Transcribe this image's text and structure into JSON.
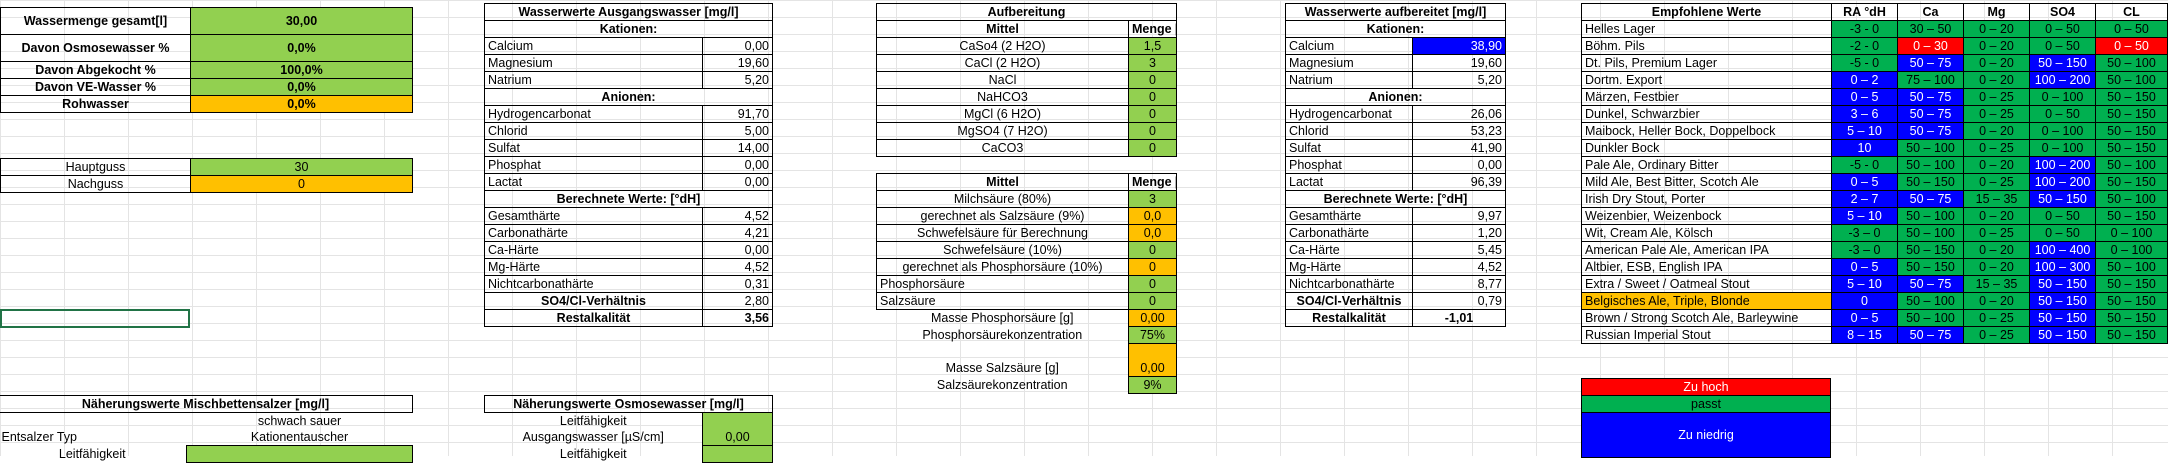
{
  "left": {
    "rows": [
      {
        "label": "Wassermenge gesamt[l]",
        "value": "30,00"
      },
      {
        "label": "Davon Osmosewasser %",
        "value": "0,0%"
      },
      {
        "label": "Davon Abgekocht %",
        "value": "100,0%"
      },
      {
        "label": "Davon VE-Wasser %",
        "value": "0,0%"
      },
      {
        "label": "Rohwasser",
        "value": "0,0%"
      }
    ],
    "hauptguss_label": "Hauptguss",
    "hauptguss_value": "30",
    "nachguss_label": "Nachguss",
    "nachguss_value": "0"
  },
  "ausgang": {
    "title": "Wasserwerte Ausgangswasser [mg/l]",
    "kationen_label": "Kationen:",
    "kationen": [
      {
        "n": "Calcium",
        "v": "0,00"
      },
      {
        "n": "Magnesium",
        "v": "19,60"
      },
      {
        "n": "Natrium",
        "v": "5,20"
      }
    ],
    "anionen_label": "Anionen:",
    "anionen": [
      {
        "n": "Hydrogencarbonat",
        "v": "91,70"
      },
      {
        "n": "Chlorid",
        "v": "5,00"
      },
      {
        "n": "Sulfat",
        "v": "14,00"
      },
      {
        "n": "Phosphat",
        "v": "0,00"
      },
      {
        "n": "Lactat",
        "v": "0,00"
      }
    ],
    "berechnet_label": "Berechnete Werte: [°dH]",
    "berechnet": [
      {
        "n": "Gesamthärte",
        "v": "4,52"
      },
      {
        "n": "Carbonathärte",
        "v": "4,21"
      },
      {
        "n": "Ca-Härte",
        "v": "0,00"
      },
      {
        "n": "Mg-Härte",
        "v": "4,52"
      },
      {
        "n": "Nichtcarbonathärte",
        "v": "0,31"
      }
    ],
    "ratio_label": "SO4/Cl-Verhältnis",
    "ratio": "2,80",
    "rest_label": "Restalkalität",
    "rest": "3,56"
  },
  "aufbereitung": {
    "title": "Aufbereitung",
    "mittel_label": "Mittel",
    "menge_g_label": "Menge [g]",
    "salze": [
      {
        "n": "CaSo4 (2 H2O)",
        "v": "1,5"
      },
      {
        "n": "CaCl (2 H2O)",
        "v": "3"
      },
      {
        "n": "NaCl",
        "v": "0"
      },
      {
        "n": "NaHCO3",
        "v": "0"
      },
      {
        "n": "MgCl (6 H2O)",
        "v": "0"
      },
      {
        "n": "MgSO4 (7 H2O)",
        "v": "0"
      },
      {
        "n": "CaCO3",
        "v": "0"
      }
    ],
    "menge_ml_label": "Menge [ml]",
    "saeuren": [
      {
        "n": "Milchsäure (80%)",
        "v": "3",
        "c": "g"
      },
      {
        "n": "gerechnet als Salzsäure (9%)",
        "v": "0,0",
        "c": "o"
      },
      {
        "n": "Schwefelsäure für Berechnung",
        "v": "0,0",
        "c": "o"
      },
      {
        "n": "Schwefelsäure (10%)",
        "v": "0",
        "c": "g"
      },
      {
        "n": "gerechnet als Phosphorsäure (10%)",
        "v": "0",
        "c": "o"
      },
      {
        "n": "Phosphorsäure",
        "v": "0",
        "c": "g"
      },
      {
        "n": "Salzsäure",
        "v": "0",
        "c": "g"
      }
    ],
    "masse_phosphor_label": "Masse Phosphorsäure [g]",
    "masse_phosphor": "0,00",
    "phosphor_konz_label": "Phosphorsäurekonzentration",
    "phosphor_konz": "75%",
    "masse_salz_label": "Masse Salzsäure [g]",
    "masse_salz": "0,00",
    "salz_konz_label": "Salzsäurekonzentration",
    "salz_konz": "9%"
  },
  "aufbereitet": {
    "title": "Wasserwerte aufbereitet [mg/l]",
    "kationen_label": "Kationen:",
    "kationen": [
      {
        "n": "Calcium",
        "v": "38,90",
        "hl": true
      },
      {
        "n": "Magnesium",
        "v": "19,60"
      },
      {
        "n": "Natrium",
        "v": "5,20"
      }
    ],
    "anionen_label": "Anionen:",
    "anionen": [
      {
        "n": "Hydrogencarbonat",
        "v": "26,06"
      },
      {
        "n": "Chlorid",
        "v": "53,23"
      },
      {
        "n": "Sulfat",
        "v": "41,90"
      },
      {
        "n": "Phosphat",
        "v": "0,00"
      },
      {
        "n": "Lactat",
        "v": "96,39"
      }
    ],
    "berechnet_label": "Berechnete Werte: [°dH]",
    "berechnet": [
      {
        "n": "Gesamthärte",
        "v": "9,97"
      },
      {
        "n": "Carbonathärte",
        "v": "1,20"
      },
      {
        "n": "Ca-Härte",
        "v": "5,45"
      },
      {
        "n": "Mg-Härte",
        "v": "4,52"
      },
      {
        "n": "Nichtcarbonathärte",
        "v": "8,77"
      }
    ],
    "ratio_label": "SO4/Cl-Verhältnis",
    "ratio": "0,79",
    "rest_label": "Restalkalität",
    "rest": "-1,01"
  },
  "empfohlen": {
    "title": "Empfohlene Werte",
    "cols": [
      "RA °dH",
      "Ca",
      "Mg",
      "SO4",
      "CL"
    ],
    "rows": [
      {
        "n": "Helles Lager",
        "nc": "",
        "v": [
          "-3 - 0",
          "30 – 50",
          "0 – 20",
          "0 – 50",
          "0 – 50"
        ],
        "c": [
          "gdk",
          "gdk",
          "gdk",
          "gdk",
          "gdk"
        ]
      },
      {
        "n": "Böhm. Pils",
        "nc": "",
        "v": [
          "-2 - 0",
          "0 – 30",
          "0 – 20",
          "0 – 50",
          "0 – 50"
        ],
        "c": [
          "gdk",
          "red",
          "gdk",
          "gdk",
          "red"
        ]
      },
      {
        "n": "Dt. Pils, Premium Lager",
        "nc": "",
        "v": [
          "-5 - 0",
          "50 – 75",
          "0 – 20",
          "50 – 150",
          "50 – 100"
        ],
        "c": [
          "gdk",
          "blue",
          "gdk",
          "blue",
          "gdk"
        ]
      },
      {
        "n": "Dortm. Export",
        "nc": "",
        "v": [
          "0 – 2",
          "75 – 100",
          "0 – 20",
          "100 – 200",
          "50 – 100"
        ],
        "c": [
          "blue",
          "gdk",
          "gdk",
          "blue",
          "gdk"
        ]
      },
      {
        "n": "Märzen, Festbier",
        "nc": "",
        "v": [
          "0 – 5",
          "50 – 75",
          "0 – 25",
          "0 – 100",
          "50 – 150"
        ],
        "c": [
          "blue",
          "blue",
          "gdk",
          "gdk",
          "gdk"
        ]
      },
      {
        "n": "Dunkel, Schwarzbier",
        "nc": "",
        "v": [
          "3 – 6",
          "50 – 75",
          "0 – 25",
          "0 – 50",
          "50 – 150"
        ],
        "c": [
          "blue",
          "blue",
          "gdk",
          "gdk",
          "gdk"
        ]
      },
      {
        "n": "Maibock, Heller Bock, Doppelbock",
        "nc": "",
        "v": [
          "5 – 10",
          "50 – 75",
          "0 – 20",
          "0 – 100",
          "50 – 150"
        ],
        "c": [
          "blue",
          "blue",
          "gdk",
          "gdk",
          "gdk"
        ]
      },
      {
        "n": "Dunkler Bock",
        "nc": "",
        "v": [
          "10",
          "50 – 100",
          "0 – 25",
          "0 – 100",
          "50 – 150"
        ],
        "c": [
          "blue",
          "gdk",
          "gdk",
          "gdk",
          "gdk"
        ]
      },
      {
        "n": "Pale Ale, Ordinary Bitter",
        "nc": "",
        "v": [
          "-5 - 0",
          "50 – 100",
          "0 – 20",
          "100 – 200",
          "50 – 100"
        ],
        "c": [
          "gdk",
          "gdk",
          "gdk",
          "blue",
          "gdk"
        ]
      },
      {
        "n": "Mild Ale, Best Bitter, Scotch Ale",
        "nc": "",
        "v": [
          "0 – 5",
          "50 – 150",
          "0 – 25",
          "100 – 200",
          "50 – 150"
        ],
        "c": [
          "blue",
          "gdk",
          "gdk",
          "blue",
          "gdk"
        ]
      },
      {
        "n": "Irish Dry Stout, Porter",
        "nc": "",
        "v": [
          "2 – 7",
          "50 – 75",
          "15 – 35",
          "50 – 150",
          "50 – 100"
        ],
        "c": [
          "blue",
          "blue",
          "gdk",
          "blue",
          "gdk"
        ]
      },
      {
        "n": "Weizenbier, Weizenbock",
        "nc": "",
        "v": [
          "5 – 10",
          "50 – 100",
          "0 – 20",
          "0 – 50",
          "50 – 150"
        ],
        "c": [
          "blue",
          "gdk",
          "gdk",
          "gdk",
          "gdk"
        ]
      },
      {
        "n": "Wit, Cream Ale, Kölsch",
        "nc": "",
        "v": [
          "-3 – 0",
          "50 – 100",
          "0 – 25",
          "0 – 50",
          "0 – 100"
        ],
        "c": [
          "gdk",
          "gdk",
          "gdk",
          "gdk",
          "gdk"
        ]
      },
      {
        "n": "American Pale Ale, American IPA",
        "nc": "",
        "v": [
          "-3 – 0",
          "50 – 150",
          "0 – 20",
          "100 – 400",
          "0 – 100"
        ],
        "c": [
          "gdk",
          "gdk",
          "gdk",
          "blue",
          "gdk"
        ]
      },
      {
        "n": "Altbier, ESB, English IPA",
        "nc": "",
        "v": [
          "0 – 5",
          "50 – 150",
          "0 – 20",
          "100 – 300",
          "50 – 100"
        ],
        "c": [
          "blue",
          "gdk",
          "gdk",
          "blue",
          "gdk"
        ]
      },
      {
        "n": "Extra / Sweet / Oatmeal Stout",
        "nc": "",
        "v": [
          "5 – 10",
          "50 – 75",
          "15 – 35",
          "50 – 150",
          "50 – 150"
        ],
        "c": [
          "blue",
          "blue",
          "gdk",
          "blue",
          "gdk"
        ]
      },
      {
        "n": "Belgisches Ale, Triple, Blonde",
        "nc": "o",
        "v": [
          "0",
          "50 – 100",
          "0 – 20",
          "50 – 150",
          "50 – 150"
        ],
        "c": [
          "blue",
          "gdk",
          "gdk",
          "blue",
          "gdk"
        ]
      },
      {
        "n": "Brown / Strong Scotch Ale, Barleywine",
        "nc": "",
        "v": [
          "0 – 5",
          "50 – 100",
          "0 – 25",
          "50 – 150",
          "50 – 150"
        ],
        "c": [
          "blue",
          "gdk",
          "gdk",
          "blue",
          "gdk"
        ]
      },
      {
        "n": "Russian Imperial Stout",
        "nc": "",
        "v": [
          "8 – 15",
          "50 – 75",
          "0 – 25",
          "50 – 150",
          "50 – 150"
        ],
        "c": [
          "blue",
          "blue",
          "gdk",
          "blue",
          "gdk"
        ]
      }
    ]
  },
  "legend": {
    "zu_hoch": "Zu hoch",
    "passt": "passt",
    "zu_niedrig": "Zu niedrig"
  },
  "mischbett": {
    "title": "Näherungswerte Mischbettensalzer [mg/l]",
    "typ_label": "Entsalzer Typ",
    "typ_value_1": "schwach sauer",
    "typ_value_2": "Kationentauscher",
    "leit_label": "Leitfähigkeit"
  },
  "osmose": {
    "title": "Näherungswerte Osmosewasser  [mg/l]",
    "leit_label_1": "Leitfähigkeit",
    "leit_label_2": "Ausgangswasser [µS/cm]",
    "leit_value": "0,00",
    "leit_label_3": "Leitfähigkeit"
  }
}
